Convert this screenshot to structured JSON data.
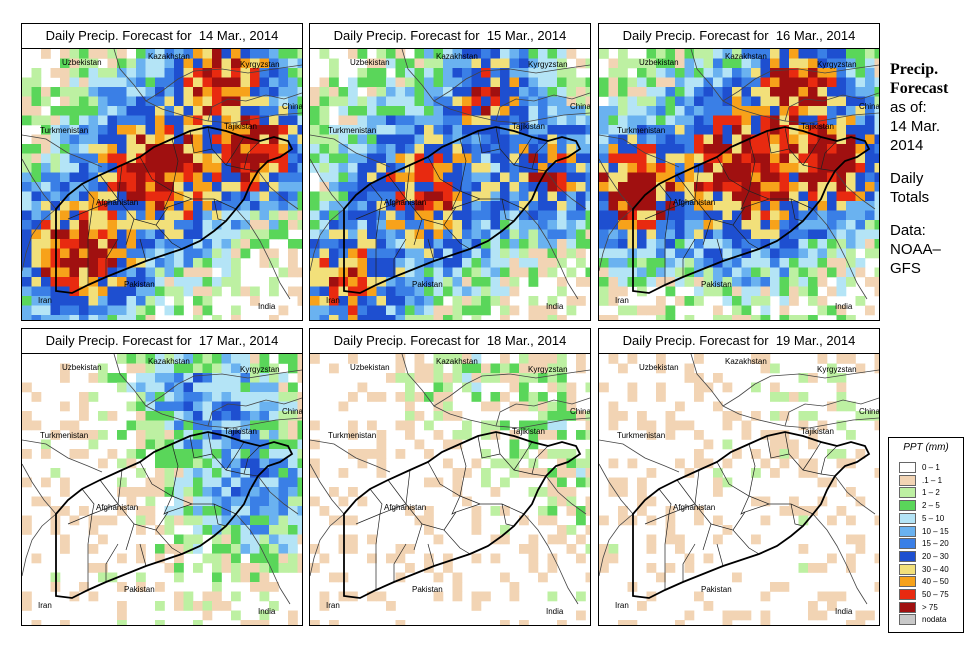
{
  "panels": [
    {
      "title": "Daily Precip. Forecast for  14 Mar., 2014",
      "intensity": 1.0
    },
    {
      "title": "Daily Precip. Forecast for  15 Mar., 2014",
      "intensity": 0.85
    },
    {
      "title": "Daily Precip. Forecast for  16 Mar., 2014",
      "intensity": 1.0
    },
    {
      "title": "Daily Precip. Forecast for  17 Mar., 2014",
      "intensity": 0.55
    },
    {
      "title": "Daily Precip. Forecast for  18 Mar., 2014",
      "intensity": 0.2
    },
    {
      "title": "Daily Precip. Forecast for  19 Mar., 2014",
      "intensity": 0.08
    }
  ],
  "map_labels": {
    "uzbekistan": "Uzbekistan",
    "kazakhstan": "Kazakhstan",
    "kyrgyzstan": "Kyrgyzstan",
    "china": "China",
    "turkmenistan": "Turkmenistan",
    "tajikistan": "Tajikistan",
    "afghanistan": "Afghanistan",
    "iran": "Iran",
    "pakistan": "Pakistan",
    "india": "India"
  },
  "sidebar": {
    "title_line1": "Precip.",
    "title_line2": "Forecast",
    "asof_line1": "as of:",
    "asof_line2": "14 Mar.",
    "asof_line3": "2014",
    "daily_line1": "Daily",
    "daily_line2": "Totals",
    "data_line1": "Data:",
    "data_line2": "NOAA–",
    "data_line3": "GFS"
  },
  "legend": {
    "title": "PPT (mm)",
    "items": [
      {
        "label": "0 – 1",
        "color": "#ffffff"
      },
      {
        "label": ".1 – 1",
        "color": "#f2d4b4"
      },
      {
        "label": "1 – 2",
        "color": "#bdf0a2"
      },
      {
        "label": "2 – 5",
        "color": "#5ad65a"
      },
      {
        "label": "5 – 10",
        "color": "#b4e4f6"
      },
      {
        "label": "10 – 15",
        "color": "#6ab2f0"
      },
      {
        "label": "15 – 20",
        "color": "#3a7fe6"
      },
      {
        "label": "20 – 30",
        "color": "#1e4fd0"
      },
      {
        "label": "30 – 40",
        "color": "#f2e07a"
      },
      {
        "label": "40 – 50",
        "color": "#f7a21a"
      },
      {
        "label": "50 – 75",
        "color": "#e82a10"
      },
      {
        "label": "> 75",
        "color": "#a01010"
      },
      {
        "label": "nodata",
        "color": "#c8c8c8"
      }
    ]
  }
}
